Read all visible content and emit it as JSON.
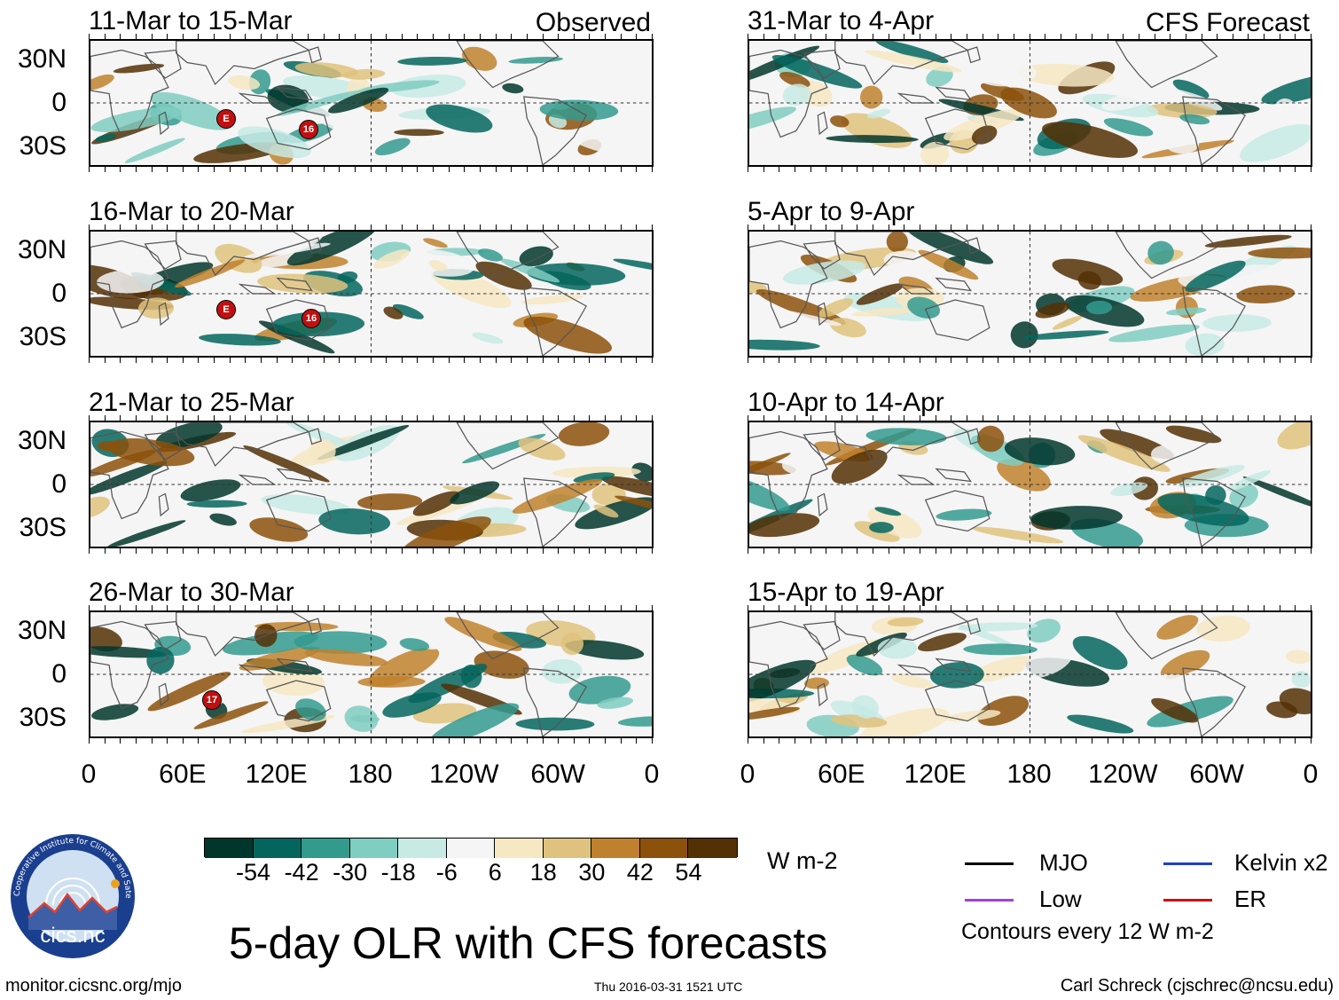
{
  "observed_label": "Observed",
  "forecast_label": "CFS Forecast",
  "panels": [
    {
      "period": "11-Mar to 15-Mar",
      "side": "observed"
    },
    {
      "period": "16-Mar to 20-Mar",
      "side": "observed"
    },
    {
      "period": "21-Mar to 25-Mar",
      "side": "observed"
    },
    {
      "period": "26-Mar to 30-Mar",
      "side": "observed"
    },
    {
      "period": "31-Mar to 4-Apr",
      "side": "forecast"
    },
    {
      "period": "5-Apr to 9-Apr",
      "side": "forecast"
    },
    {
      "period": "10-Apr to 14-Apr",
      "side": "forecast"
    },
    {
      "period": "15-Apr to 19-Apr",
      "side": "forecast"
    }
  ],
  "lat_labels": [
    "30N",
    "0",
    "30S"
  ],
  "lon_labels": [
    "0",
    "60E",
    "120E",
    "180",
    "120W",
    "60W",
    "0"
  ],
  "colorbar": {
    "unit": "W m-2",
    "colors": [
      "#01362c",
      "#03665e",
      "#339a8e",
      "#80cdc1",
      "#c7eae5",
      "#f5f5f5",
      "#f6e8c3",
      "#dfc27d",
      "#bf812d",
      "#8c510a",
      "#543005"
    ],
    "labels": [
      "-54",
      "-42",
      "-30",
      "-18",
      "-6",
      "6",
      "18",
      "30",
      "42",
      "54"
    ]
  },
  "legend": {
    "items": [
      {
        "label": "MJO",
        "color": "#000000"
      },
      {
        "label": "Kelvin x2",
        "color": "#1f3fcf"
      },
      {
        "label": "Low",
        "color": "#a040e0"
      },
      {
        "label": "ER",
        "color": "#d01010"
      }
    ],
    "note": "Contours every 12 W m-2"
  },
  "title": "5-day OLR with CFS forecasts",
  "logo_text": "cics.nc",
  "logo_ring_text": "Cooperative Institute for Climate and Satellites",
  "footer": {
    "url": "monitor.cicsnc.org/mjo",
    "timestamp": "Thu 2016-03-31 1521 UTC",
    "author": "Carl Schreck (cjschrec@ncsu.edu)"
  },
  "storm_labels": [
    "E",
    "16",
    "E",
    "16",
    "17"
  ]
}
